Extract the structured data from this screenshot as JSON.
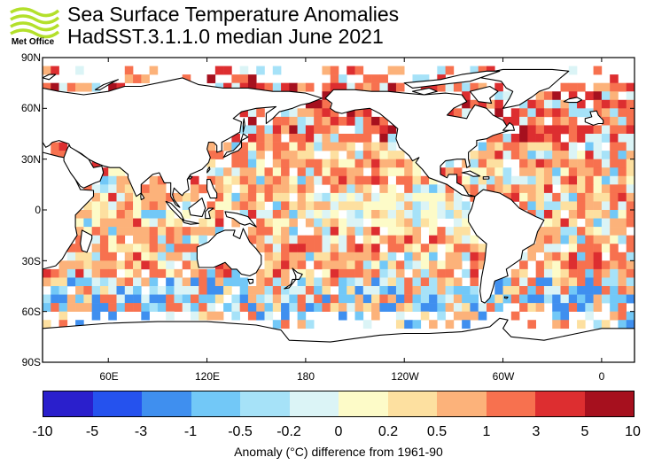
{
  "header": {
    "logo_text": "Met Office",
    "title": "Sea Surface Temperature Anomalies",
    "subtitle": "HadSST.3.1.1.0 median June 2021"
  },
  "map": {
    "projection": "equirectangular",
    "lon_range": [
      20,
      380
    ],
    "lat_range": [
      -90,
      90
    ],
    "lat_labels": [
      "90N",
      "60N",
      "30N",
      "0",
      "30S",
      "60S",
      "90S"
    ],
    "lon_labels": [
      "60E",
      "120E",
      "180",
      "120W",
      "60W",
      "0"
    ],
    "grid_resolution_deg": 5
  },
  "colorbar": {
    "title": "Anomaly (°C) difference from 1961-90",
    "tick_labels": [
      "-10",
      "-5",
      "-3",
      "-1",
      "-0.5",
      "-0.2",
      "0",
      "0.2",
      "0.5",
      "1",
      "3",
      "5",
      "10"
    ],
    "colors": [
      "#2a1fcc",
      "#2552ee",
      "#3f8fef",
      "#72c8f7",
      "#a6e2f8",
      "#dbf4f6",
      "#fdfbc8",
      "#fde0a0",
      "#fcb27a",
      "#f7714f",
      "#dd2e30",
      "#a6101e"
    ]
  }
}
